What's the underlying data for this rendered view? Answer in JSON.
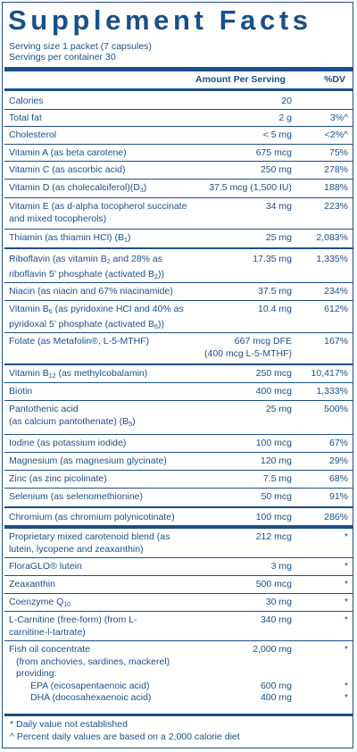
{
  "title": "Supplement Facts",
  "serving_size": "Serving size  1 packet (7 capsules)",
  "servings_per_container": "Servings per container  30",
  "header": {
    "amount": "Amount Per Serving",
    "dv": "%DV"
  },
  "rows": [
    {
      "name": "Calories",
      "amount": "20",
      "dv": ""
    },
    {
      "name": "Total fat",
      "amount": "2 g",
      "dv": "3%^"
    },
    {
      "name": "Cholesterol",
      "amount": "< 5 mg",
      "dv": "<2%^"
    },
    {
      "name": "Vitamin A (as beta carotene)",
      "amount": "675 mcg",
      "dv": "75%"
    },
    {
      "name": "Vitamin C (as ascorbic acid)",
      "amount": "250 mg",
      "dv": "278%"
    },
    {
      "name_pre": "Vitamin D (as cholecalciferol)(D",
      "name_sub": "3",
      "name_post": ")",
      "amount": "37.5 mcg (1,500 IU)",
      "dv": "188%"
    },
    {
      "name": "Vitamin E (as d-alpha tocopherol succinate and mixed tocopherols)",
      "amount": "34 mg",
      "dv": "223%"
    },
    {
      "name_pre": "Thiamin (as thiamin HCl) (B",
      "name_sub": "1",
      "name_post": ")",
      "amount": "25 mg",
      "dv": "2,083%"
    },
    {
      "name_l1_pre": "Riboflavin (as vitamin B",
      "name_l1_sub": "2",
      "name_l1_post": " and 28% as",
      "name_l2_pre": "riboflavin 5’ phosphate (activated B",
      "name_l2_sub": "2",
      "name_l2_post": "))",
      "amount": "17.35 mg",
      "dv": "1,335%"
    },
    {
      "name": "Niacin (as niacin and 67% niacinamide)",
      "amount": "37.5 mg",
      "dv": "234%"
    },
    {
      "name_l1_pre": "Vitamin B",
      "name_l1_sub": "6",
      "name_l1_post": " (as pyridoxine HCl and 40% as",
      "name_l2_pre": "pyridoxal 5’ phosphate (activated B",
      "name_l2_sub": "6",
      "name_l2_post": "))",
      "amount": "10.4 mg",
      "dv": "612%"
    },
    {
      "name": "Folate (as Metafolin®, L-5-MTHF)",
      "amount_l1": "667 mcg DFE",
      "amount_l2": "(400 mcg L-5-MTHF)",
      "dv": "167%"
    },
    {
      "name_pre": "Vitamin B",
      "name_sub": "12",
      "name_post": " (as methylcobalamin)",
      "amount": "250 mcg",
      "dv": "10,417%"
    },
    {
      "name": "Biotin",
      "amount": "400 mcg",
      "dv": "1,333%"
    },
    {
      "name_l1": "Pantothenic acid",
      "name_l2_pre": "(as calcium pantothenate) (B",
      "name_l2_sub": "5",
      "name_l2_post": ")",
      "amount": "25 mg",
      "dv": "500%"
    },
    {
      "name": "Iodine (as potassium iodide)",
      "amount": "100 mcg",
      "dv": "67%"
    },
    {
      "name": "Magnesium (as magnesium glycinate)",
      "amount": "120 mg",
      "dv": "29%"
    },
    {
      "name": "Zinc (as zinc picolinate)",
      "amount": "7.5 mg",
      "dv": "68%"
    },
    {
      "name": "Selenium (as selenomethionine)",
      "amount": "50 mcg",
      "dv": "91%"
    },
    {
      "name": "Chromium (as chromium polynicotinate)",
      "amount": "100 mcg",
      "dv": "286%"
    },
    {
      "name": "Proprietary mixed carotenoid blend (as lutein, lycopene and zeaxanthin)",
      "amount": "212 mcg",
      "dv": "*"
    },
    {
      "name": "FloraGLO® lutein",
      "amount": "3 mg",
      "dv": "*"
    },
    {
      "name": "Zeaxanthin",
      "amount": "500 mcg",
      "dv": "*"
    },
    {
      "name_pre": "Coenzyme Q",
      "name_sub": "10",
      "name_post": "",
      "amount": "30 mg",
      "dv": "*"
    },
    {
      "name": "L-Carnitine (free-form) (from L-carnitine-l-tartrate)",
      "amount": "340 mg",
      "dv": "*"
    },
    {
      "fish_l1": "Fish oil concentrate",
      "fish_l2": "(from anchovies, sardines, mackerel)",
      "fish_l3": "providing:",
      "fish_l4": "EPA (eicosapentaenoic acid)",
      "fish_l5": "DHA (docosahexaenoic acid)",
      "amount": "2,000 mg",
      "amount_epa": "600 mg",
      "amount_dha": "400 mg",
      "dv": "*",
      "dv_epa": "*",
      "dv_dha": "*"
    }
  ],
  "footnotes": {
    "f1": "* Daily value not established",
    "f2": "^ Percent daily values are based on a 2,000 calorie diet"
  }
}
